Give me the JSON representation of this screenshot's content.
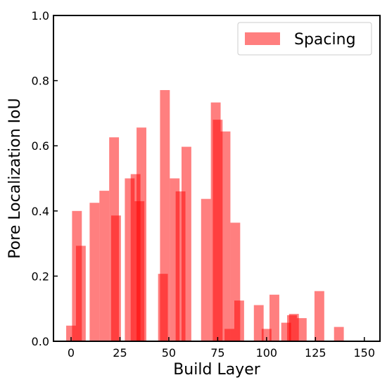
{
  "chart_data": {
    "type": "bar",
    "xlabel": "Build Layer",
    "ylabel": "Pore Localization IoU",
    "xlim": [
      -9,
      158
    ],
    "ylim": [
      0,
      1.0
    ],
    "xticks": [
      0,
      25,
      50,
      75,
      100,
      125,
      150
    ],
    "yticks": [
      0.0,
      0.2,
      0.4,
      0.6,
      0.8,
      1.0
    ],
    "ytick_labels": [
      "0.0",
      "0.2",
      "0.4",
      "0.6",
      "0.8",
      "1.0"
    ],
    "bar_width": 5,
    "legend_position": "top-right",
    "series": [
      {
        "name": "Spacing",
        "color": "#ff0000",
        "opacity": 0.5,
        "x": [
          0,
          3,
          5,
          12,
          17,
          22,
          23,
          30,
          33,
          35,
          36,
          47,
          48,
          53,
          56,
          59,
          69,
          74,
          75,
          79,
          81,
          84,
          86,
          96,
          100,
          104,
          110,
          113,
          114,
          118,
          127,
          137
        ],
        "values": [
          0.048,
          0.4,
          0.293,
          0.425,
          0.462,
          0.626,
          0.386,
          0.5,
          0.513,
          0.43,
          0.656,
          0.207,
          0.771,
          0.5,
          0.46,
          0.597,
          0.437,
          0.733,
          0.68,
          0.644,
          0.038,
          0.364,
          0.125,
          0.111,
          0.038,
          0.143,
          0.057,
          0.08,
          0.084,
          0.071,
          0.154,
          0.044
        ]
      }
    ]
  }
}
